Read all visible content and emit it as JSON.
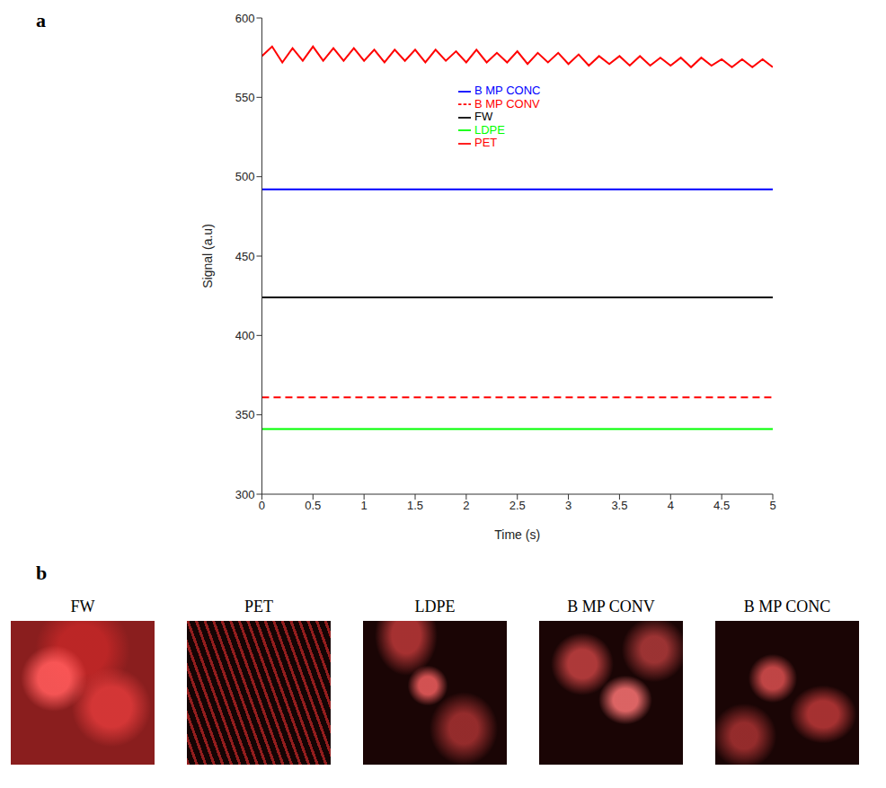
{
  "panel_labels": [
    "a",
    "b"
  ],
  "chart_data": {
    "type": "line",
    "x_label": "Time (s)",
    "y_label": "Signal (a.u)",
    "xlim": [
      0,
      5
    ],
    "ylim": [
      300,
      600
    ],
    "xticks": [
      0,
      0.5,
      1,
      1.5,
      2,
      2.5,
      3,
      3.5,
      4,
      4.5,
      5
    ],
    "yticks": [
      300,
      350,
      400,
      450,
      500,
      550,
      600
    ],
    "grid": false,
    "legend": "top",
    "series": [
      {
        "name": "FW",
        "color": "#000000",
        "line_style": "solid",
        "x": [
          0,
          5
        ],
        "values": [
          424,
          424
        ]
      },
      {
        "name": "PET",
        "color": "#ff0000",
        "line_style": "solid",
        "x": [
          0,
          0.1,
          0.2,
          0.3,
          0.4,
          0.5,
          0.6,
          0.7,
          0.8,
          0.9,
          1,
          1.1,
          1.2,
          1.3,
          1.4,
          1.5,
          1.6,
          1.7,
          1.8,
          1.9,
          2,
          2.1,
          2.2,
          2.3,
          2.4,
          2.5,
          2.6,
          2.7,
          2.8,
          2.9,
          3,
          3.1,
          3.2,
          3.3,
          3.4,
          3.5,
          3.6,
          3.7,
          3.8,
          3.9,
          4,
          4.1,
          4.2,
          4.3,
          4.4,
          4.5,
          4.6,
          4.7,
          4.8,
          4.9,
          5
        ],
        "values": [
          576,
          582,
          572,
          581,
          573,
          582,
          573,
          581,
          573,
          581,
          573,
          580,
          572,
          580,
          573,
          580,
          572,
          580,
          573,
          579,
          572,
          580,
          572,
          578,
          572,
          579,
          571,
          578,
          572,
          578,
          571,
          577,
          570,
          576,
          571,
          576,
          570,
          576,
          570,
          575,
          570,
          575,
          569,
          575,
          570,
          574,
          569,
          574,
          569,
          574,
          569
        ]
      },
      {
        "name": "LDPE",
        "color": "#00ff00",
        "line_style": "solid",
        "x": [
          0,
          5
        ],
        "values": [
          341,
          341
        ]
      },
      {
        "name": "B MP CONC",
        "color": "#0000ff",
        "line_style": "solid",
        "x": [
          0,
          5
        ],
        "values": [
          492,
          492
        ]
      },
      {
        "name": "B MP CONV",
        "color": "#ff0000",
        "line_style": "dashed",
        "x": [
          0,
          5
        ],
        "values": [
          361,
          361
        ]
      }
    ]
  },
  "images": {
    "labels": [
      "FW",
      "PET",
      "LDPE",
      "B MP CONV",
      "B MP CONC"
    ]
  }
}
